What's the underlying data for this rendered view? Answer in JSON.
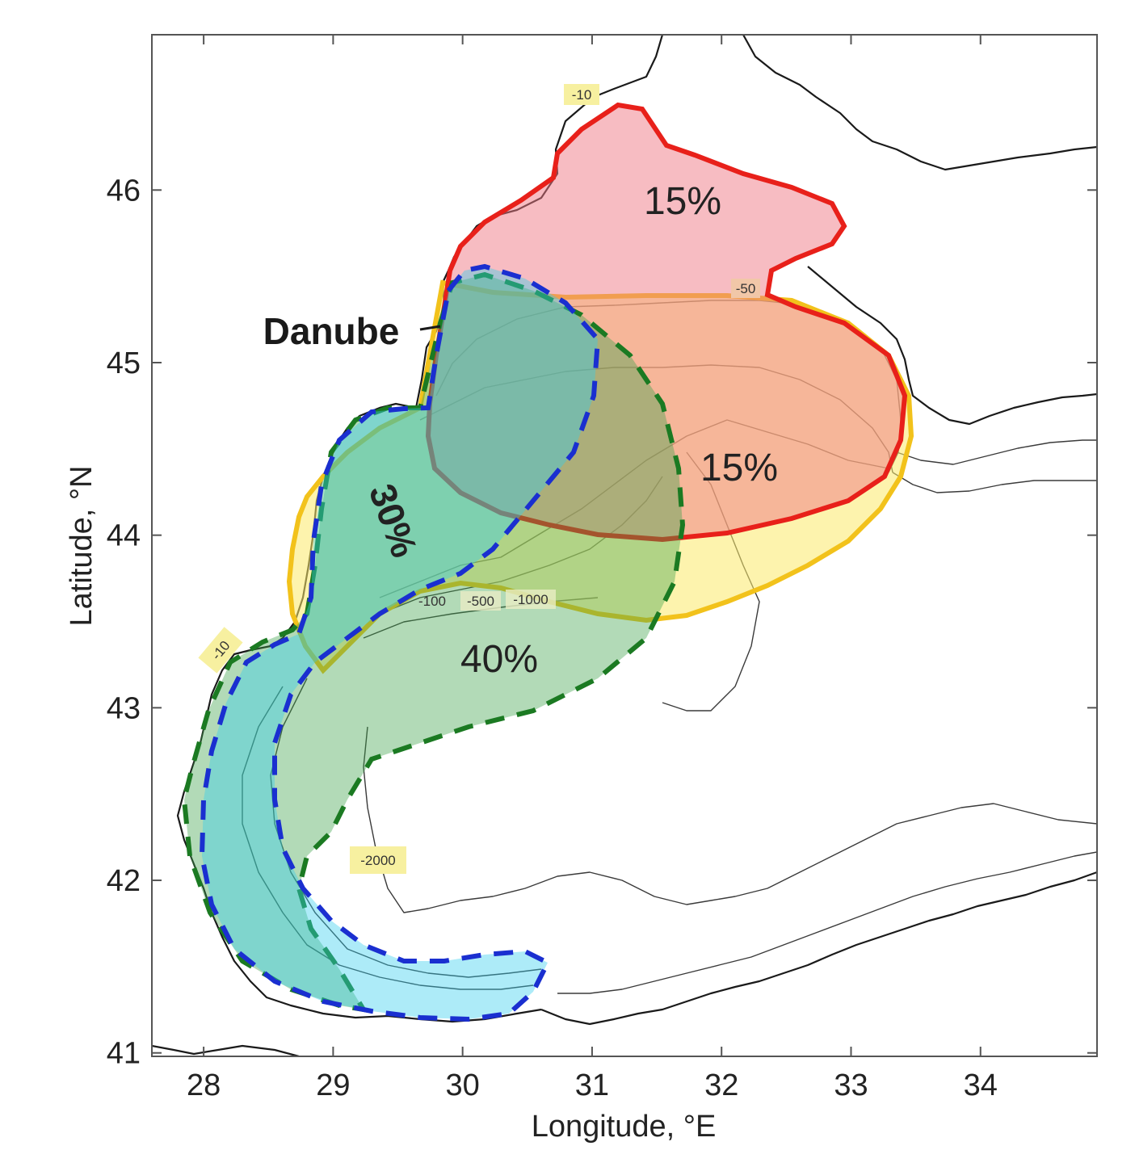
{
  "figure": {
    "x_axis": {
      "label": "Longitude, °E",
      "range": [
        27.6,
        34.9
      ],
      "ticks": [
        28,
        29,
        30,
        31,
        32,
        33,
        34
      ],
      "tick_labels": [
        "28",
        "29",
        "30",
        "31",
        "32",
        "33",
        "34"
      ]
    },
    "y_axis": {
      "label": "Latitude, °N",
      "range": [
        40.98,
        46.9
      ],
      "ticks": [
        41,
        42,
        43,
        44,
        45,
        46
      ],
      "tick_labels": [
        "41",
        "42",
        "43",
        "44",
        "45",
        "46"
      ]
    },
    "labels": {
      "river": "Danube"
    },
    "zones": [
      {
        "id": "northwestern-shelf-zone",
        "percent": "15%",
        "edge_color": "#e8201a",
        "fill_color": "#f07a86",
        "line_style": "solid"
      },
      {
        "id": "outer-shelf-zone",
        "percent": "15%",
        "edge_color": "#f2c21b",
        "fill_color": "#fbe96a",
        "line_style": "solid"
      },
      {
        "id": "western-coastal-zone",
        "percent": "30%",
        "edge_color": "#1a2fd0",
        "fill_color": "#33ccee",
        "line_style": "dashed"
      },
      {
        "id": "western-slope-zone",
        "percent": "40%",
        "edge_color": "#1b7a22",
        "fill_color": "#3ea24a",
        "line_style": "dashed"
      }
    ],
    "depth_tags": [
      "-10",
      "-10",
      "-50",
      "-100",
      "-500",
      "-1000",
      "-2000"
    ]
  }
}
